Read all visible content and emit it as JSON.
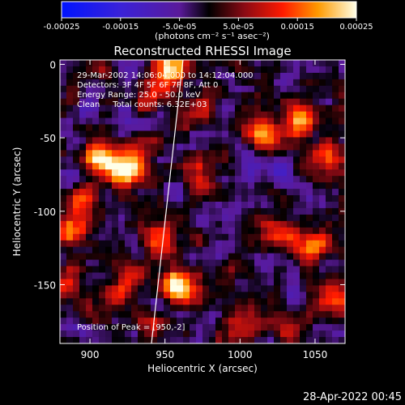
{
  "chart_data": {
    "type": "heatmap",
    "title": "Reconstructed RHESSI Image",
    "xlabel": "Heliocentric X (arcsec)",
    "ylabel": "Heliocentric Y (arcsec)",
    "xlim": [
      880,
      1070
    ],
    "ylim": [
      -190,
      3
    ],
    "xticks": [
      900,
      950,
      1000,
      1050
    ],
    "yticks": [
      0,
      -50,
      -100,
      -150
    ],
    "colorbar": {
      "unit_label": "(photons cm⁻² s⁻¹ asec⁻²)",
      "range": [
        -0.00025,
        0.00025
      ],
      "tick_values": [
        -0.00025,
        -0.00015,
        -5e-05,
        5e-05,
        0.00015,
        0.00025
      ],
      "tick_labels": [
        "-0.00025",
        "-0.00015",
        "-5.0e-05",
        "5.0e-05",
        "0.00015",
        "0.00025"
      ]
    },
    "annotations": [
      "29-Mar-2002 14:06:04.000 to 14:12:04.000",
      "Detectors: 3F 4F 5F 6F 7F 8F, Att 0",
      "Energy Range: 25.0 - 50.0 keV",
      "Clean     Total counts: 6.32E+03"
    ],
    "peak_label": "Position of Peak = [950,-2]",
    "limb_line": {
      "points": [
        [
          941,
          -190
        ],
        [
          962,
          3
        ]
      ]
    },
    "grid": false,
    "blobs": [
      {
        "x": 905,
        "y": -62,
        "v": 0.00018
      },
      {
        "x": 918,
        "y": -72,
        "v": 0.00024
      },
      {
        "x": 932,
        "y": -66,
        "v": 0.0002
      },
      {
        "x": 895,
        "y": -90,
        "v": 0.00014
      },
      {
        "x": 887,
        "y": -115,
        "v": 0.00022
      },
      {
        "x": 953,
        "y": -2,
        "v": 0.00025
      },
      {
        "x": 940,
        "y": -20,
        "v": 0.0001
      },
      {
        "x": 958,
        "y": -152,
        "v": 0.00025
      },
      {
        "x": 950,
        "y": -120,
        "v": 0.00015
      },
      {
        "x": 940,
        "y": -180,
        "v": 0.00012
      },
      {
        "x": 975,
        "y": -30,
        "v": 0.00016
      },
      {
        "x": 973,
        "y": -72,
        "v": 0.00011
      },
      {
        "x": 1015,
        "y": -48,
        "v": 0.00019
      },
      {
        "x": 1040,
        "y": -40,
        "v": 0.00017
      },
      {
        "x": 1058,
        "y": -62,
        "v": 0.00015
      },
      {
        "x": 1048,
        "y": -125,
        "v": 0.00022
      },
      {
        "x": 1060,
        "y": -160,
        "v": 0.00018
      },
      {
        "x": 1025,
        "y": -115,
        "v": 0.00015
      },
      {
        "x": 930,
        "y": -140,
        "v": 0.00011
      },
      {
        "x": 915,
        "y": -160,
        "v": 9e-05
      },
      {
        "x": 885,
        "y": -150,
        "v": 8e-05
      },
      {
        "x": 1000,
        "y": -180,
        "v": 0.00012
      },
      {
        "x": 1040,
        "y": -180,
        "v": 9e-05
      }
    ],
    "noise_seed": 7
  },
  "footer": {
    "timestamp": "28-Apr-2022 00:45"
  }
}
